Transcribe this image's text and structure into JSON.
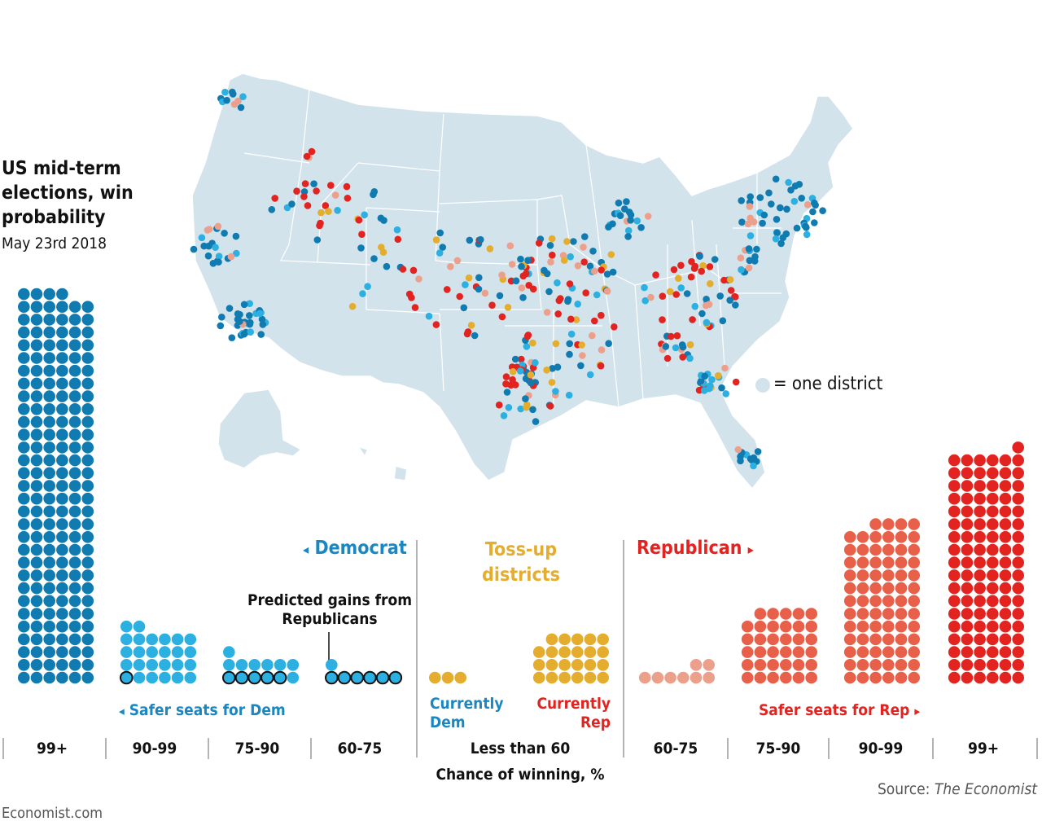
{
  "chart": {
    "title": "US mid-term elections, win probability",
    "subtitle": "May 23rd 2018",
    "source_label": "Source:",
    "source_name": "The Economist",
    "footer": "Economist.com",
    "legend_label": "= one district",
    "header_dem": "Democrat",
    "header_tossup": "Toss-up districts",
    "header_rep": "Republican",
    "gains_label": "Predicted gains from Republicans",
    "safer_dem": "Safer seats for Dem",
    "safer_rep": "Safer seats for Rep",
    "currently_dem": "Currently Dem",
    "currently_rep": "Currently Rep",
    "x_title": "Chance of winning, %",
    "arrow_left": "◂",
    "arrow_right": "▸"
  },
  "colors": {
    "dem_dark": "#0f7bb0",
    "dem_light": "#2cb0e2",
    "tossup": "#e5ad2d",
    "rep_light": "#eca08c",
    "rep_mid": "#e9604a",
    "rep_dark": "#e3231f",
    "map_land": "#d3e3ec",
    "map_border": "#ffffff",
    "gain_outline": "#111111"
  },
  "chart_data": {
    "type": "dot-histogram",
    "x_title": "Chance of winning, %",
    "bins": [
      {
        "party": "Dem",
        "label": "99+",
        "seats": 184,
        "gains_from_rep": 0
      },
      {
        "party": "Dem",
        "label": "90-99",
        "seats": 26,
        "gains_from_rep": 1
      },
      {
        "party": "Dem",
        "label": "75-90",
        "seats": 13,
        "gains_from_rep": 5
      },
      {
        "party": "Dem",
        "label": "60-75",
        "seats": 7,
        "gains_from_rep": 6
      },
      {
        "party": "Toss-up",
        "label": "Less than 60",
        "currently_dem": 3,
        "currently_rep": 23
      },
      {
        "party": "Rep",
        "label": "60-75",
        "seats": 8,
        "gains_from_rep": 0
      },
      {
        "party": "Rep",
        "label": "75-90",
        "seats": 35,
        "gains_from_rep": 0
      },
      {
        "party": "Rep",
        "label": "90-99",
        "seats": 76,
        "gains_from_rep": 0
      },
      {
        "party": "Rep",
        "label": "99+",
        "seats": 109,
        "gains_from_rep": 0
      }
    ]
  }
}
